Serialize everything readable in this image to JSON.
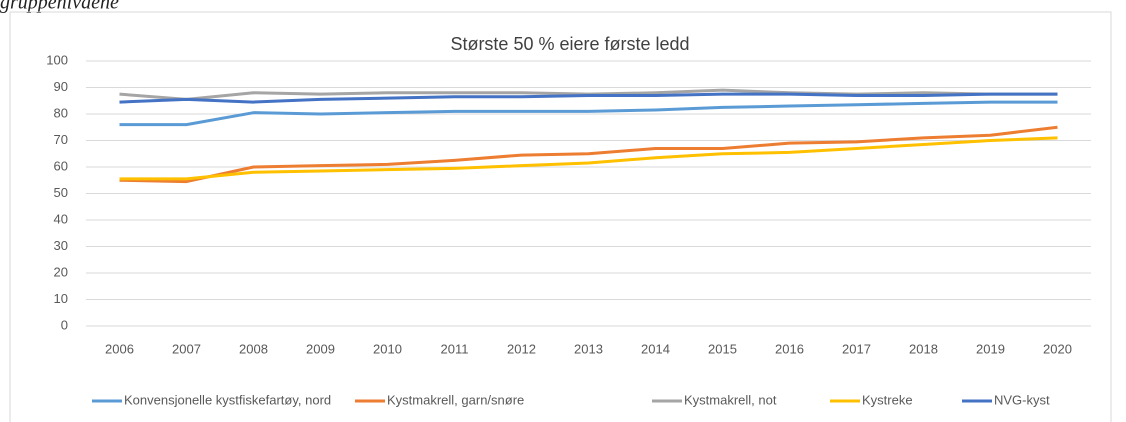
{
  "caption": "gruppenivåene",
  "chart_data": {
    "type": "line",
    "title": "Største 50 % eiere første ledd",
    "categories": [
      "2006",
      "2007",
      "2008",
      "2009",
      "2010",
      "2011",
      "2012",
      "2013",
      "2014",
      "2015",
      "2016",
      "2017",
      "2018",
      "2019",
      "2020"
    ],
    "series": [
      {
        "name": "Konvensjonelle kystfiskefartøy, nord",
        "color": "#5b9bd5",
        "values": [
          76,
          76,
          80.5,
          80,
          80.5,
          81,
          81,
          81,
          81.5,
          82.5,
          83,
          83.5,
          84,
          84.5,
          84.5
        ]
      },
      {
        "name": "Kystmakrell, garn/snøre",
        "color": "#ed7d31",
        "values": [
          55,
          54.5,
          60,
          60.5,
          61,
          62.5,
          64.5,
          65,
          67,
          67,
          69,
          69.5,
          71,
          72,
          75
        ]
      },
      {
        "name": "Kystmakrell, not",
        "color": "#a5a5a5",
        "values": [
          87.5,
          85.5,
          88,
          87.5,
          88,
          88,
          88,
          87.5,
          88,
          89,
          88,
          87.5,
          88,
          87.5,
          87.5
        ]
      },
      {
        "name": "Kystreke",
        "color": "#ffc000",
        "values": [
          55.5,
          55.5,
          58,
          58.5,
          59,
          59.5,
          60.5,
          61.5,
          63.5,
          65,
          65.5,
          67,
          68.5,
          70,
          71
        ]
      },
      {
        "name": "NVG-kyst",
        "color": "#4472c4",
        "values": [
          84.5,
          85.5,
          84.5,
          85.5,
          86,
          86.5,
          86.5,
          87,
          87,
          87.5,
          87.5,
          87,
          87,
          87.5,
          87.5
        ]
      }
    ],
    "ylim": [
      0,
      100
    ],
    "yticks": [
      0,
      10,
      20,
      30,
      40,
      50,
      60,
      70,
      80,
      90,
      100
    ],
    "grid": true,
    "legend": "bottom"
  }
}
